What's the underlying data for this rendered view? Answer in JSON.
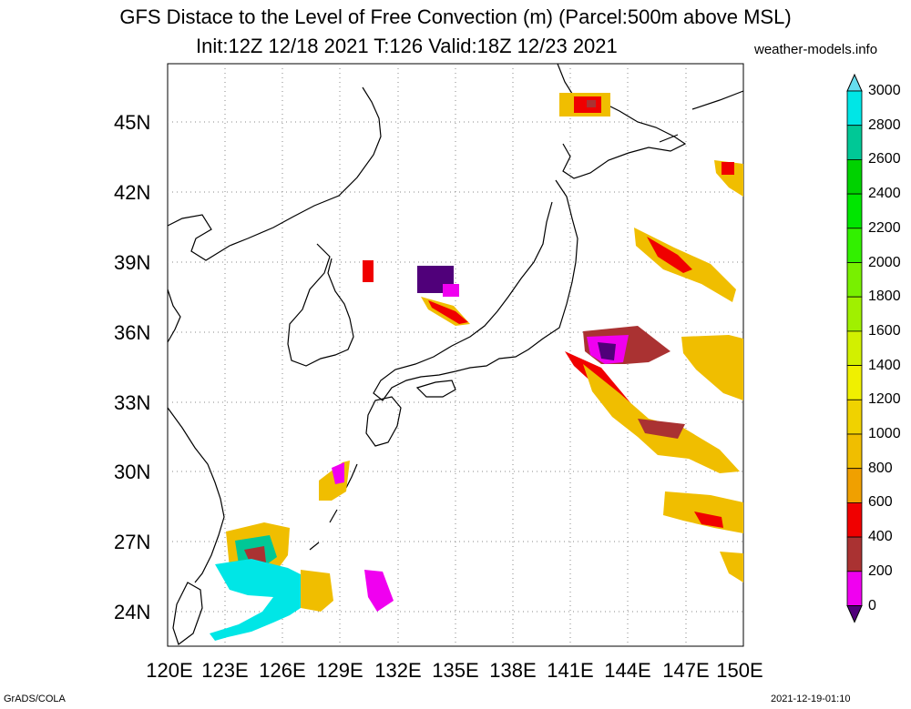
{
  "header": {
    "title": "GFS Distace to the Level of Free Convection (m) (Parcel:500m above MSL)",
    "subtitle": "Init:12Z 12/18 2021 T:126 Valid:18Z 12/23 2021",
    "credit": "weather-models.info"
  },
  "footer": {
    "left": "GrADS/COLA",
    "right": "2021-12-19-01:10"
  },
  "map": {
    "lat_labels": [
      "45N",
      "42N",
      "39N",
      "36N",
      "33N",
      "30N",
      "27N",
      "24N"
    ],
    "lon_labels": [
      "120E",
      "123E",
      "126E",
      "129E",
      "132E",
      "135E",
      "138E",
      "141E",
      "144E",
      "147E",
      "150E"
    ],
    "extent": {
      "lon": [
        120,
        150
      ],
      "lat": [
        22.5,
        47.5
      ]
    },
    "grid": "dotted"
  },
  "colorbar": {
    "labels": [
      "3000",
      "2800",
      "2600",
      "2400",
      "2200",
      "2000",
      "1800",
      "1600",
      "1400",
      "1200",
      "1000",
      "800",
      "600",
      "400",
      "200",
      "0"
    ],
    "colors": [
      "#00e6e6",
      "#00c896",
      "#00d200",
      "#00e600",
      "#32f000",
      "#78f000",
      "#a0f000",
      "#d2f000",
      "#f0f000",
      "#f0d200",
      "#f0be00",
      "#f0a000",
      "#f00000",
      "#aa3232",
      "#f000f0",
      "#50007a"
    ],
    "top_arrow_color": "#66ddee",
    "bottom_arrow_color": "#50007a"
  }
}
